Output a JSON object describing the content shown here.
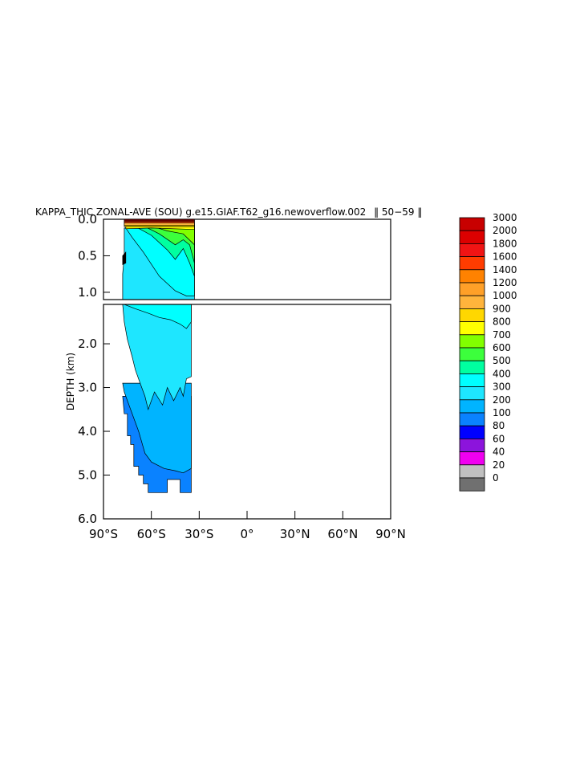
{
  "chart_data": {
    "type": "heatmap",
    "title": "KAPPA_THIC ZONAL-AVE (SOU) g.e15.GIAF.T62_g16.newoverflow.002  50-59 ",
    "title_text": "KAPPA_THIC ZONAL-AVE (SOU) g.e15.GIAF.T62_g16.newoverflow.002",
    "title_years": "50−59",
    "ylabel": "DEPTH (km)",
    "x_ticks": [
      "90°S",
      "60°S",
      "30°S",
      "0°",
      "30°N",
      "60°N",
      "90°N"
    ],
    "x_tick_values": [
      -90,
      -60,
      -30,
      0,
      30,
      60,
      90
    ],
    "xlim": [
      -90,
      90
    ],
    "upper_y_ticks": [
      "0.0",
      "0.5",
      "1.0"
    ],
    "upper_y_values": [
      0.0,
      0.5,
      1.0
    ],
    "upper_ylim": [
      0,
      1.1
    ],
    "lower_y_ticks": [
      "2.0",
      "3.0",
      "4.0",
      "5.0",
      "6.0"
    ],
    "lower_y_values": [
      2.0,
      3.0,
      4.0,
      5.0,
      6.0
    ],
    "lower_ylim": [
      1.1,
      6.0
    ],
    "colorbar": {
      "levels": [
        "3000",
        "2000",
        "1800",
        "1600",
        "1400",
        "1200",
        "1000",
        "900",
        "800",
        "700",
        "600",
        "500",
        "400",
        "300",
        "200",
        "100",
        "80",
        "60",
        "40",
        "20",
        "0"
      ],
      "colors": [
        "#c80000",
        "#dc0000",
        "#f01414",
        "#ff3c00",
        "#ff8200",
        "#ffa028",
        "#ffb43c",
        "#ffd700",
        "#ffff00",
        "#82ff00",
        "#3cff3c",
        "#00ffa0",
        "#00ffff",
        "#1ee6ff",
        "#00b4ff",
        "#0a82ff",
        "#0000ff",
        "#8c14dc",
        "#f000f0",
        "#c0c0c0",
        "#707070"
      ]
    },
    "series": [
      {
        "panel": "upper",
        "regions": [
          {
            "level": "400",
            "color": "#1ee6ff",
            "poly": [
              [
                -77,
                0.12
              ],
              [
                -33,
                0.12
              ],
              [
                -33,
                1.1
              ],
              [
                -78,
                1.1
              ],
              [
                -78,
                0.75
              ],
              [
                -77,
                0.5
              ]
            ]
          },
          {
            "level": "500",
            "color": "#00ffff",
            "poly": [
              [
                -76,
                0.12
              ],
              [
                -33,
                0.12
              ],
              [
                -33,
                1.05
              ],
              [
                -38,
                1.05
              ],
              [
                -45,
                0.98
              ],
              [
                -55,
                0.78
              ],
              [
                -65,
                0.45
              ],
              [
                -72,
                0.25
              ]
            ]
          },
          {
            "level": "600",
            "color": "#00ffa0",
            "poly": [
              [
                -70,
                0.1
              ],
              [
                -33,
                0.1
              ],
              [
                -33,
                0.78
              ],
              [
                -36,
                0.6
              ],
              [
                -40,
                0.4
              ],
              [
                -45,
                0.55
              ],
              [
                -50,
                0.42
              ],
              [
                -60,
                0.22
              ]
            ]
          },
          {
            "level": "700",
            "color": "#3cff3c",
            "poly": [
              [
                -65,
                0.09
              ],
              [
                -33,
                0.09
              ],
              [
                -33,
                0.6
              ],
              [
                -36,
                0.35
              ],
              [
                -40,
                0.28
              ],
              [
                -45,
                0.35
              ],
              [
                -55,
                0.2
              ]
            ]
          },
          {
            "level": "800",
            "color": "#82ff00",
            "poly": [
              [
                -62,
                0.08
              ],
              [
                -33,
                0.08
              ],
              [
                -33,
                0.35
              ],
              [
                -40,
                0.2
              ],
              [
                -50,
                0.16
              ]
            ]
          },
          {
            "level": "900",
            "color": "#ffff00",
            "poly": [
              [
                -76,
                0.06
              ],
              [
                -33,
                0.06
              ],
              [
                -33,
                0.14
              ],
              [
                -60,
                0.12
              ],
              [
                -76,
                0.13
              ]
            ]
          },
          {
            "level": "1000",
            "color": "#ffd700",
            "poly": [
              [
                -77,
                0.05
              ],
              [
                -33,
                0.05
              ],
              [
                -33,
                0.1
              ],
              [
                -77,
                0.1
              ]
            ]
          },
          {
            "level": "1200",
            "color": "#ffb43c",
            "poly": [
              [
                -77,
                0.04
              ],
              [
                -33,
                0.04
              ],
              [
                -33,
                0.08
              ],
              [
                -77,
                0.08
              ]
            ]
          },
          {
            "level": "1600",
            "color": "#ff3c00",
            "poly": [
              [
                -77,
                0.025
              ],
              [
                -33,
                0.025
              ],
              [
                -33,
                0.05
              ],
              [
                -77,
                0.05
              ]
            ]
          },
          {
            "level": "2000",
            "color": "#dc0000",
            "poly": [
              [
                -77,
                0.015
              ],
              [
                -33,
                0.015
              ],
              [
                -33,
                0.03
              ],
              [
                -77,
                0.03
              ]
            ]
          },
          {
            "level": "3000",
            "color": "#c80000",
            "poly": [
              [
                -77,
                0.0
              ],
              [
                -33,
                0.0
              ],
              [
                -33,
                0.02
              ],
              [
                -77,
                0.02
              ]
            ]
          },
          {
            "level": "0",
            "color": "#000000",
            "poly": [
              [
                -78,
                0.5
              ],
              [
                -76,
                0.45
              ],
              [
                -76,
                0.6
              ],
              [
                -78,
                0.62
              ]
            ]
          }
        ]
      },
      {
        "panel": "lower",
        "regions": [
          {
            "level": "200",
            "color": "#0a82ff",
            "poly": [
              [
                -78,
                3.2
              ],
              [
                -35,
                3.2
              ],
              [
                -35,
                5.4
              ],
              [
                -42,
                5.4
              ],
              [
                -42,
                5.1
              ],
              [
                -50,
                5.1
              ],
              [
                -50,
                5.4
              ],
              [
                -55,
                5.4
              ],
              [
                -55,
                5.4
              ],
              [
                -62,
                5.4
              ],
              [
                -62,
                5.2
              ],
              [
                -65,
                5.2
              ],
              [
                -65,
                5.0
              ],
              [
                -68,
                5.0
              ],
              [
                -68,
                4.8
              ],
              [
                -71,
                4.8
              ],
              [
                -71,
                4.3
              ],
              [
                -73,
                4.3
              ],
              [
                -73,
                4.1
              ],
              [
                -75,
                4.1
              ],
              [
                -75,
                3.6
              ],
              [
                -77,
                3.6
              ]
            ]
          },
          {
            "level": "300",
            "color": "#00b4ff",
            "poly": [
              [
                -78,
                2.9
              ],
              [
                -35,
                2.9
              ],
              [
                -35,
                4.85
              ],
              [
                -40,
                4.95
              ],
              [
                -45,
                4.9
              ],
              [
                -52,
                4.85
              ],
              [
                -60,
                4.7
              ],
              [
                -64,
                4.5
              ],
              [
                -68,
                4.0
              ],
              [
                -72,
                3.6
              ],
              [
                -75,
                3.3
              ],
              [
                -77,
                3.1
              ]
            ]
          },
          {
            "level": "400",
            "color": "#1ee6ff",
            "poly": [
              [
                -78,
                1.1
              ],
              [
                -35,
                1.1
              ],
              [
                -35,
                2.75
              ],
              [
                -38,
                2.8
              ],
              [
                -40,
                3.2
              ],
              [
                -42,
                3.0
              ],
              [
                -46,
                3.3
              ],
              [
                -50,
                3.0
              ],
              [
                -53,
                3.4
              ],
              [
                -58,
                3.1
              ],
              [
                -62,
                3.5
              ],
              [
                -64,
                3.2
              ],
              [
                -67,
                2.9
              ],
              [
                -70,
                2.6
              ],
              [
                -72,
                2.3
              ],
              [
                -75,
                1.9
              ],
              [
                -77,
                1.5
              ]
            ]
          },
          {
            "level": "500",
            "color": "#00ffff",
            "poly": [
              [
                -77,
                1.1
              ],
              [
                -35,
                1.1
              ],
              [
                -35,
                1.5
              ],
              [
                -38,
                1.65
              ],
              [
                -42,
                1.55
              ],
              [
                -48,
                1.45
              ],
              [
                -55,
                1.4
              ],
              [
                -62,
                1.3
              ],
              [
                -70,
                1.2
              ]
            ]
          }
        ]
      }
    ]
  }
}
